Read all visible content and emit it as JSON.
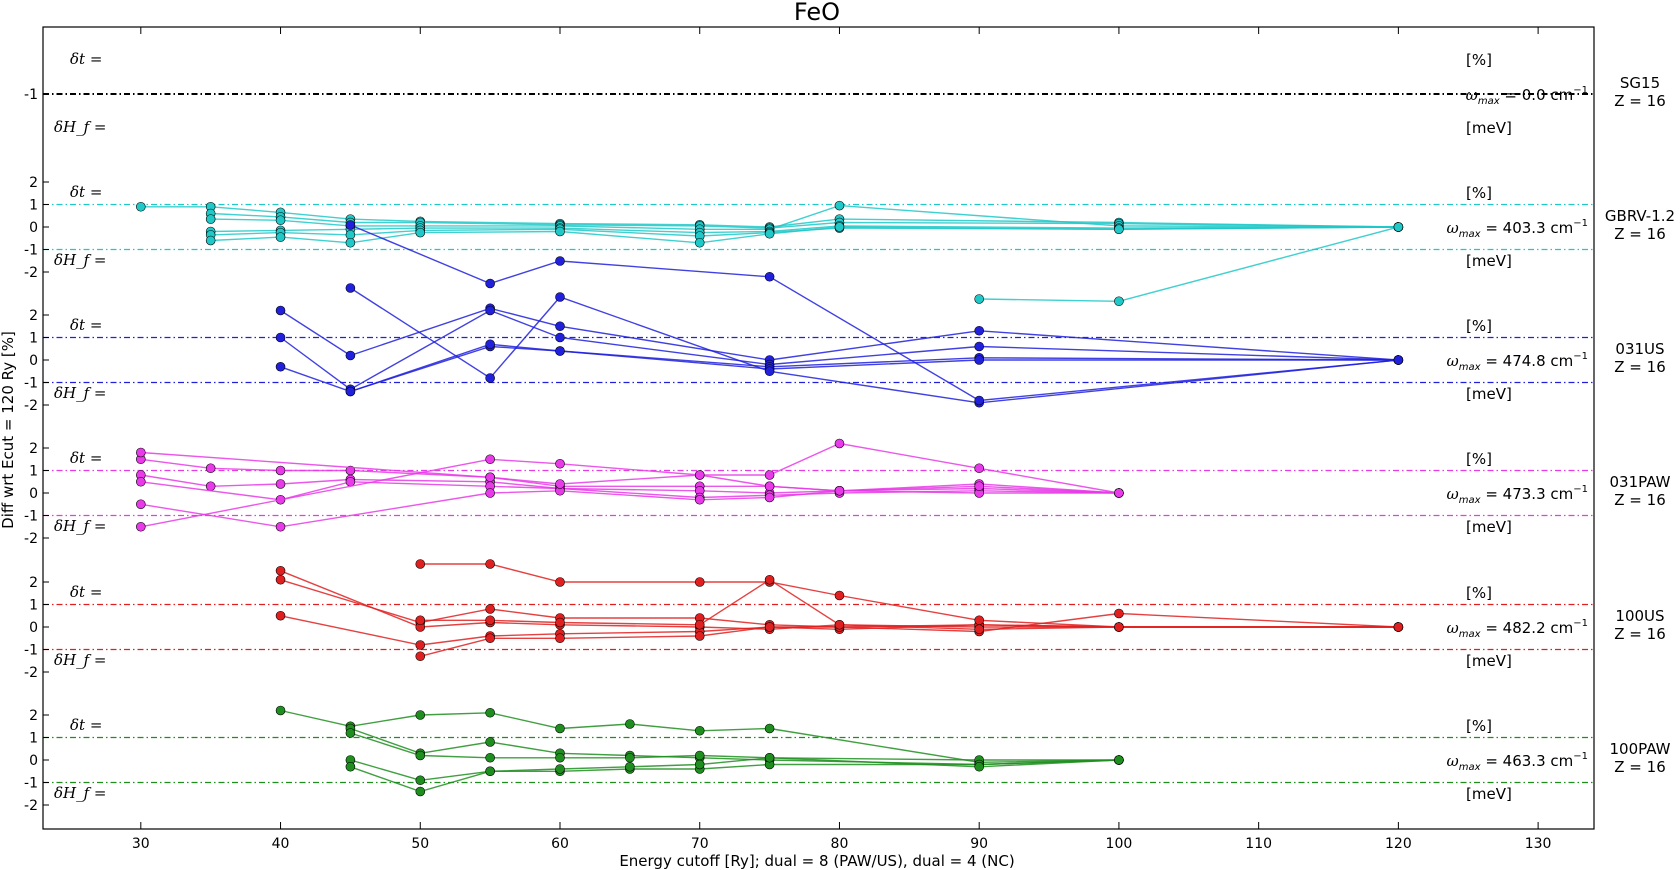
{
  "chart_data": {
    "type": "line",
    "title": "FeO",
    "xlabel": "Energy cutoff [Ry]; dual = 8 (PAW/US), dual = 4 (NC)",
    "ylabel": "Diff wrt Ecut = 120 Ry [%]",
    "xlim": [
      23,
      134
    ],
    "x_ticks": [
      "30",
      "40",
      "50",
      "60",
      "70",
      "80",
      "90",
      "100",
      "110",
      "120",
      "130"
    ],
    "y_tick_labels": [
      "2",
      "1",
      "0",
      "-1",
      "-2"
    ],
    "dt_label": "δt =",
    "dh_label": "δH_f =",
    "pct_unit": "[%]",
    "mev_unit": "[meV]",
    "omega_prefix": "ω_max = ",
    "omega_suffix": " cm⁻¹",
    "grid": false,
    "panels": [
      {
        "name": "SG15",
        "z_label": "Z = 16",
        "omega": "0.0",
        "color": "#000000",
        "series": []
      },
      {
        "name": "GBRV-1.2",
        "z_label": "Z = 16",
        "omega": "403.3",
        "color": "#20c8c8",
        "series": [
          {
            "x": [
              30,
              35,
              40,
              45,
              50,
              60,
              70,
              75,
              80,
              100,
              120
            ],
            "y": [
              0.9,
              0.9,
              0.65,
              0.35,
              0.25,
              0.15,
              0.1,
              0.0,
              0.35,
              0.2,
              0.0
            ]
          },
          {
            "x": [
              35,
              40,
              45,
              50,
              60,
              70,
              75,
              80,
              100,
              120
            ],
            "y": [
              0.6,
              0.45,
              0.2,
              0.2,
              0.1,
              0.05,
              -0.05,
              0.2,
              0.15,
              0.0
            ]
          },
          {
            "x": [
              35,
              40,
              45,
              50,
              60,
              70,
              75,
              80,
              100,
              120
            ],
            "y": [
              0.35,
              0.3,
              0.05,
              0.05,
              0.05,
              -0.1,
              -0.1,
              0.95,
              0.05,
              0.0
            ]
          },
          {
            "x": [
              35,
              40,
              45,
              50,
              60,
              70,
              75,
              80,
              100,
              120
            ],
            "y": [
              -0.2,
              -0.15,
              -0.1,
              -0.05,
              -0.05,
              -0.25,
              -0.2,
              0.05,
              -0.05,
              0.0
            ]
          },
          {
            "x": [
              35,
              40,
              45,
              50,
              60,
              70,
              75,
              80,
              100,
              120
            ],
            "y": [
              -0.35,
              -0.25,
              -0.35,
              -0.15,
              -0.1,
              -0.4,
              -0.25,
              -0.05,
              -0.1,
              0.0
            ]
          },
          {
            "x": [
              35,
              40,
              45,
              50,
              60,
              70,
              75,
              80,
              100,
              120
            ],
            "y": [
              -0.6,
              -0.45,
              -0.7,
              -0.25,
              -0.2,
              -0.7,
              -0.3,
              0.0,
              -0.1,
              0.0
            ]
          },
          {
            "x": [
              90,
              100,
              120
            ],
            "y": [
              -3.2,
              -3.3,
              0.0
            ]
          }
        ]
      },
      {
        "name": "031US",
        "z_label": "Z = 16",
        "omega": "474.8",
        "color": "#2020dd",
        "series": [
          {
            "x": [
              40,
              45,
              55,
              60,
              75,
              90,
              120
            ],
            "y": [
              2.2,
              0.2,
              2.3,
              1.5,
              0.0,
              1.3,
              0.0
            ]
          },
          {
            "x": [
              40,
              45,
              55,
              60,
              75,
              90,
              120
            ],
            "y": [
              1.0,
              -1.3,
              2.2,
              1.0,
              -0.2,
              0.6,
              0.0
            ]
          },
          {
            "x": [
              45,
              55,
              60,
              75,
              90,
              120
            ],
            "y": [
              -1.4,
              0.6,
              0.4,
              -0.3,
              0.1,
              0.0
            ]
          },
          {
            "x": [
              40,
              45,
              55,
              60,
              75,
              90,
              120
            ],
            "y": [
              -0.3,
              -1.4,
              0.7,
              0.4,
              -0.4,
              0.0,
              0.0
            ]
          },
          {
            "x": [
              45,
              55,
              60,
              75,
              90,
              120
            ],
            "y": [
              3.2,
              -0.8,
              2.8,
              -0.5,
              -1.9,
              0.0
            ]
          },
          {
            "x": [
              45,
              55,
              60,
              75,
              90,
              120
            ],
            "y": [
              6,
              3.4,
              4.4,
              3.7,
              -1.8,
              0.0
            ]
          }
        ]
      },
      {
        "name": "031PAW",
        "z_label": "Z = 16",
        "omega": "473.3",
        "color": "#e83ae8",
        "series": [
          {
            "x": [
              30,
              35,
              40,
              45,
              55,
              60,
              70,
              75,
              80,
              90,
              100
            ],
            "y": [
              1.5,
              1.1,
              1.0,
              1.0,
              0.7,
              0.3,
              0.3,
              0.3,
              0.1,
              0.4,
              0.0
            ]
          },
          {
            "x": [
              30,
              35,
              40,
              45,
              55,
              60,
              70,
              75,
              80,
              90,
              100
            ],
            "y": [
              0.8,
              0.3,
              0.4,
              0.6,
              0.5,
              0.2,
              0.1,
              0.0,
              0.1,
              0.2,
              0.0
            ]
          },
          {
            "x": [
              30,
              40,
              45,
              55,
              60,
              70,
              75,
              80,
              90,
              100
            ],
            "y": [
              0.5,
              -0.3,
              0.5,
              0.3,
              0.2,
              -0.2,
              -0.1,
              0.0,
              0.1,
              0.0
            ]
          },
          {
            "x": [
              30,
              40,
              55,
              60,
              70,
              75,
              80,
              90,
              100
            ],
            "y": [
              -0.5,
              -1.5,
              0.0,
              0.1,
              -0.3,
              -0.2,
              0.1,
              0.0,
              0.0
            ]
          },
          {
            "x": [
              30,
              55,
              60,
              70,
              75,
              80,
              90,
              100
            ],
            "y": [
              -1.5,
              1.5,
              1.3,
              0.8,
              0.8,
              2.2,
              1.1,
              0.0
            ]
          },
          {
            "x": [
              30,
              55,
              60,
              70,
              75,
              80,
              90,
              100
            ],
            "y": [
              1.8,
              0.7,
              0.4,
              0.8,
              0.3,
              0.1,
              0.3,
              0.0
            ]
          }
        ]
      },
      {
        "name": "100US",
        "z_label": "Z = 16",
        "omega": "482.2",
        "color": "#e02020",
        "series": [
          {
            "x": [
              40,
              50,
              55,
              60,
              70,
              75,
              80,
              90,
              100,
              120
            ],
            "y": [
              2.1,
              0.2,
              0.8,
              0.4,
              0.4,
              0.1,
              0.0,
              -0.2,
              0.6,
              0.0
            ]
          },
          {
            "x": [
              40,
              50,
              55,
              60,
              70,
              75,
              80,
              90,
              100,
              120
            ],
            "y": [
              2.5,
              0.0,
              0.2,
              0.1,
              0.0,
              -0.1,
              0.1,
              0.0,
              0.0,
              0.0
            ]
          },
          {
            "x": [
              40,
              50,
              55,
              60,
              70,
              75,
              80,
              90,
              100,
              120
            ],
            "y": [
              0.5,
              -0.8,
              -0.4,
              -0.3,
              -0.2,
              0.0,
              -0.1,
              0.1,
              0.0,
              0.0
            ]
          },
          {
            "x": [
              50,
              55,
              60,
              70,
              75,
              80,
              90,
              100,
              120
            ],
            "y": [
              -1.3,
              -0.5,
              -0.5,
              -0.4,
              0.0,
              0.0,
              0.1,
              0.0,
              0.0
            ]
          },
          {
            "x": [
              50,
              55,
              60,
              70,
              75,
              80,
              90,
              100,
              120
            ],
            "y": [
              2.8,
              2.8,
              2.0,
              2.0,
              2.0,
              1.4,
              0.3,
              0.0,
              0.0
            ]
          },
          {
            "x": [
              50,
              55,
              60,
              70,
              75,
              80,
              90,
              100,
              120
            ],
            "y": [
              0.3,
              0.3,
              0.2,
              0.1,
              2.1,
              0.1,
              -0.1,
              0.0,
              0.0
            ]
          }
        ]
      },
      {
        "name": "100PAW",
        "z_label": "Z = 16",
        "omega": "463.3",
        "color": "#1e8e1e",
        "series": [
          {
            "x": [
              40,
              45,
              50,
              55,
              60,
              65,
              70,
              75,
              90,
              100
            ],
            "y": [
              2.2,
              1.5,
              2.0,
              2.1,
              1.4,
              1.6,
              1.3,
              1.4,
              -0.1,
              0.0
            ]
          },
          {
            "x": [
              45,
              50,
              55,
              60,
              65,
              70,
              75,
              90,
              100
            ],
            "y": [
              1.4,
              0.3,
              0.8,
              0.3,
              0.2,
              0.1,
              0.0,
              -0.2,
              0.0
            ]
          },
          {
            "x": [
              45,
              50,
              55,
              60,
              65,
              70,
              75,
              90,
              100
            ],
            "y": [
              1.2,
              0.2,
              0.1,
              0.1,
              0.1,
              0.2,
              0.1,
              0.0,
              0.0
            ]
          },
          {
            "x": [
              45,
              50,
              55,
              60,
              65,
              70,
              75,
              90,
              100
            ],
            "y": [
              0.0,
              -0.9,
              -0.5,
              -0.5,
              -0.4,
              -0.4,
              -0.2,
              -0.2,
              0.0
            ]
          },
          {
            "x": [
              45,
              50,
              55,
              60,
              65,
              70,
              75,
              90,
              100
            ],
            "y": [
              -0.3,
              -1.4,
              -0.5,
              -0.4,
              -0.3,
              -0.2,
              0.1,
              -0.3,
              0.0
            ]
          }
        ]
      }
    ]
  }
}
